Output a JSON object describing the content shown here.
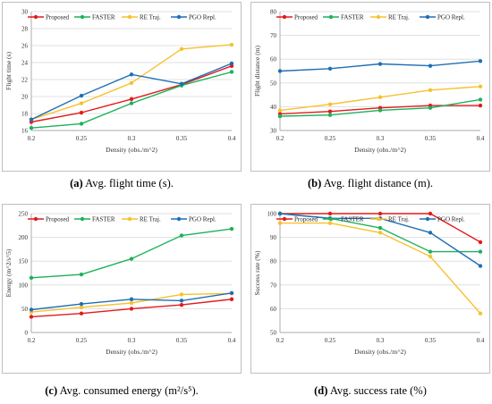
{
  "colors": {
    "Proposed": "#e31a1c",
    "FASTER": "#1db15a",
    "RE Traj.": "#f7c12e",
    "PGO Repl.": "#1f6fb4",
    "grid": "#d9d9d9"
  },
  "panels": [
    {
      "caption_label": "(a)",
      "caption_text": "Avg. flight time (s).",
      "chart_data": {
        "type": "line",
        "xlabel": "Density (obs./m^2)",
        "ylabel": "Flight time (s)",
        "x": [
          0.2,
          0.25,
          0.3,
          0.35,
          0.4
        ],
        "x_ticks": [
          "0.2",
          "0.25",
          "0.3",
          "0.35",
          "0.4"
        ],
        "ylim": [
          16,
          30
        ],
        "y_ticks": [
          16,
          18,
          20,
          22,
          24,
          26,
          28,
          30
        ],
        "grid": "horizontal",
        "legend": "top",
        "series": [
          {
            "name": "Proposed",
            "values": [
              17.0,
              18.1,
              19.7,
              21.4,
              23.6
            ]
          },
          {
            "name": "FASTER",
            "values": [
              16.3,
              16.8,
              19.2,
              21.3,
              22.9
            ]
          },
          {
            "name": "RE Traj.",
            "values": [
              17.3,
              19.2,
              21.6,
              25.6,
              26.1
            ]
          },
          {
            "name": "PGO Repl.",
            "values": [
              17.3,
              20.1,
              22.6,
              21.5,
              23.9
            ]
          }
        ]
      }
    },
    {
      "caption_label": "(b)",
      "caption_text": "Avg. flight distance (m).",
      "chart_data": {
        "type": "line",
        "xlabel": "Density (obs./m^2)",
        "ylabel": "Flight distance (m)",
        "x": [
          0.2,
          0.25,
          0.3,
          0.35,
          0.4
        ],
        "x_ticks": [
          "0.2",
          "0.25",
          "0.3",
          "0.35",
          "0.4"
        ],
        "ylim": [
          30,
          80
        ],
        "y_ticks": [
          30,
          40,
          50,
          60,
          70,
          80
        ],
        "grid": "horizontal",
        "legend": "top",
        "series": [
          {
            "name": "Proposed",
            "values": [
              37.0,
              38.0,
              39.5,
              40.5,
              40.5
            ]
          },
          {
            "name": "FASTER",
            "values": [
              36.0,
              36.5,
              38.5,
              39.5,
              43.0
            ]
          },
          {
            "name": "RE Traj.",
            "values": [
              38.5,
              41.0,
              44.0,
              47.0,
              48.5
            ]
          },
          {
            "name": "PGO Repl.",
            "values": [
              55.0,
              56.0,
              58.0,
              57.2,
              59.2
            ]
          }
        ]
      }
    },
    {
      "caption_label": "(c)",
      "caption_text": "Avg. consumed energy (m²/s⁵).",
      "chart_data": {
        "type": "line",
        "xlabel": "Density (obs./m^2)",
        "ylabel": "Energy (m^2/s^5)",
        "x": [
          0.2,
          0.25,
          0.3,
          0.35,
          0.4
        ],
        "x_ticks": [
          "0.2",
          "0.25",
          "0.3",
          "0.35",
          "0.4"
        ],
        "ylim": [
          0,
          250
        ],
        "y_ticks": [
          0,
          50,
          100,
          150,
          200,
          250
        ],
        "grid": "horizontal",
        "legend": "top",
        "series": [
          {
            "name": "Proposed",
            "values": [
              33,
              40,
              50,
              58,
              70
            ]
          },
          {
            "name": "FASTER",
            "values": [
              115,
              122,
              155,
              204,
              218
            ]
          },
          {
            "name": "RE Traj.",
            "values": [
              43,
              53,
              62,
              80,
              82
            ]
          },
          {
            "name": "PGO Repl.",
            "values": [
              48,
              60,
              70,
              67,
              83
            ]
          }
        ]
      }
    },
    {
      "caption_label": "(d)",
      "caption_text": "Avg. success rate (%)",
      "chart_data": {
        "type": "line",
        "xlabel": "Density (obs./m^2)",
        "ylabel": "Success rate (%)",
        "x": [
          0.2,
          0.25,
          0.3,
          0.35,
          0.4
        ],
        "x_ticks": [
          "0.2",
          "0.25",
          "0.3",
          "0.35",
          "0.4"
        ],
        "ylim": [
          50,
          100
        ],
        "y_ticks": [
          50,
          60,
          70,
          80,
          90,
          100
        ],
        "grid": "horizontal",
        "legend": "top",
        "series": [
          {
            "name": "Proposed",
            "values": [
              100,
              100,
              100,
              100,
              88
            ]
          },
          {
            "name": "FASTER",
            "values": [
              100,
              98,
              94,
              84,
              84
            ]
          },
          {
            "name": "RE Traj.",
            "values": [
              96,
              96,
              92,
              82,
              58
            ]
          },
          {
            "name": "PGO Repl.",
            "values": [
              100,
              98,
              98,
              92,
              78
            ]
          }
        ]
      }
    }
  ]
}
